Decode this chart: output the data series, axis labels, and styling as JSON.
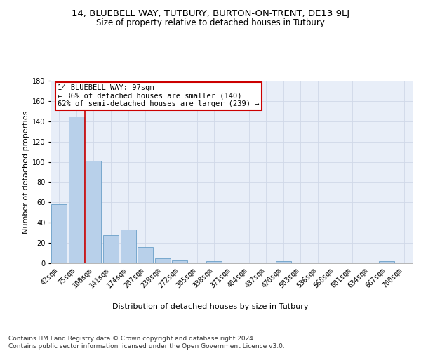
{
  "title1": "14, BLUEBELL WAY, TUTBURY, BURTON-ON-TRENT, DE13 9LJ",
  "title2": "Size of property relative to detached houses in Tutbury",
  "xlabel": "Distribution of detached houses by size in Tutbury",
  "ylabel": "Number of detached properties",
  "bar_labels": [
    "42sqm",
    "75sqm",
    "108sqm",
    "141sqm",
    "174sqm",
    "207sqm",
    "239sqm",
    "272sqm",
    "305sqm",
    "338sqm",
    "371sqm",
    "404sqm",
    "437sqm",
    "470sqm",
    "503sqm",
    "536sqm",
    "568sqm",
    "601sqm",
    "634sqm",
    "667sqm",
    "700sqm"
  ],
  "bar_values": [
    58,
    145,
    101,
    28,
    33,
    16,
    5,
    3,
    0,
    2,
    0,
    0,
    0,
    2,
    0,
    0,
    0,
    0,
    0,
    2,
    0
  ],
  "bar_color": "#b8d0ea",
  "bar_edge_color": "#6a9fc8",
  "grid_color": "#d0d8e8",
  "bg_color": "#e8eef8",
  "vline_x": 1.5,
  "vline_color": "#cc0000",
  "annotation_text": "14 BLUEBELL WAY: 97sqm\n← 36% of detached houses are smaller (140)\n62% of semi-detached houses are larger (239) →",
  "annotation_box_color": "#ffffff",
  "annotation_box_edge": "#cc0000",
  "ylim": [
    0,
    180
  ],
  "yticks": [
    0,
    20,
    40,
    60,
    80,
    100,
    120,
    140,
    160,
    180
  ],
  "footer": "Contains HM Land Registry data © Crown copyright and database right 2024.\nContains public sector information licensed under the Open Government Licence v3.0.",
  "title1_fontsize": 9.5,
  "title2_fontsize": 8.5,
  "xlabel_fontsize": 8,
  "ylabel_fontsize": 8,
  "tick_fontsize": 7,
  "annotation_fontsize": 7.5,
  "footer_fontsize": 6.5
}
